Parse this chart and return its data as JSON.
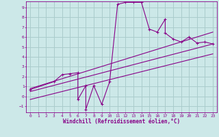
{
  "xlabel": "Windchill (Refroidissement éolien,°C)",
  "background_color": "#cce8e8",
  "grid_color": "#aacccc",
  "line_color": "#880088",
  "xlim": [
    -0.5,
    23.5
  ],
  "ylim": [
    -1.6,
    9.6
  ],
  "xticks": [
    0,
    1,
    2,
    3,
    4,
    5,
    6,
    7,
    8,
    9,
    10,
    11,
    12,
    13,
    14,
    15,
    16,
    17,
    18,
    19,
    20,
    21,
    22,
    23
  ],
  "yticks": [
    -1,
    0,
    1,
    2,
    3,
    4,
    5,
    6,
    7,
    8,
    9
  ],
  "scatter_x": [
    0,
    3,
    4,
    5,
    6,
    6,
    7,
    7,
    8,
    9,
    10,
    11,
    12,
    13,
    14,
    15,
    16,
    17,
    17,
    18,
    19,
    20,
    21,
    22,
    23
  ],
  "scatter_y": [
    0.7,
    1.5,
    2.2,
    2.3,
    2.4,
    -0.3,
    1.1,
    -1.3,
    1.1,
    -0.8,
    1.5,
    9.3,
    9.5,
    9.5,
    9.5,
    6.8,
    6.5,
    7.8,
    6.4,
    5.8,
    5.5,
    6.0,
    5.4,
    5.5,
    5.3
  ],
  "line1_x": [
    0,
    23
  ],
  "line1_y": [
    0.5,
    5.3
  ],
  "line2_x": [
    0,
    23
  ],
  "line2_y": [
    -0.3,
    4.3
  ],
  "line3_x": [
    0,
    23
  ],
  "line3_y": [
    0.8,
    6.5
  ]
}
